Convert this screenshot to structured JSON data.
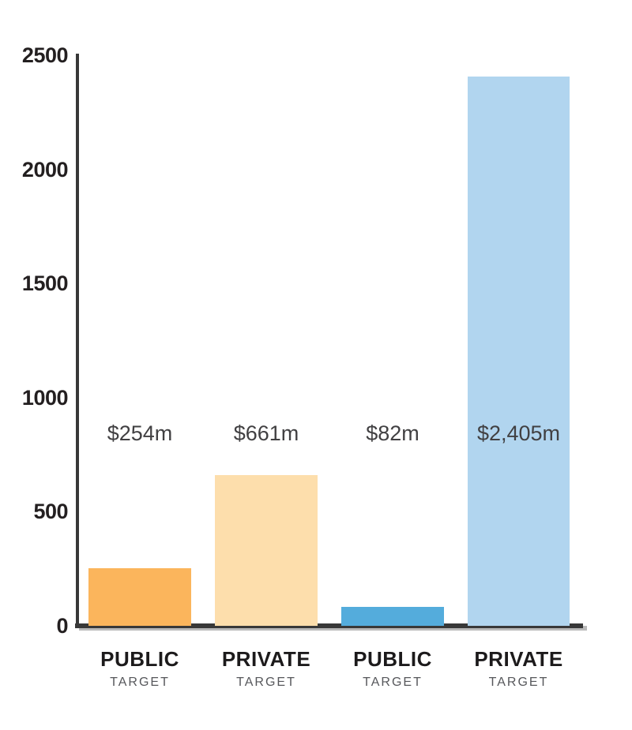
{
  "chart_data": {
    "type": "bar",
    "title": "",
    "xlabel": "",
    "ylabel": "",
    "ylim": [
      0,
      2500
    ],
    "y_ticks": [
      "0",
      "500",
      "1000",
      "1500",
      "2000",
      "2500"
    ],
    "y_tick_values": [
      0,
      500,
      1000,
      1500,
      2000,
      2500
    ],
    "grid": false,
    "legend_position": "none",
    "categories": [
      "PUBLIC",
      "PRIVATE",
      "PUBLIC",
      "PRIVATE"
    ],
    "subcategories": [
      "TARGET",
      "TARGET",
      "TARGET",
      "TARGET"
    ],
    "values": [
      254,
      661,
      82,
      2405
    ],
    "value_labels": [
      "$254m",
      "$661m",
      "$82m",
      "$2,405m"
    ],
    "bar_colors": [
      "#FBB55C",
      "#FDDEAC",
      "#54ACDC",
      "#B1D5EF"
    ]
  },
  "colors": {
    "background": "#FFFFFF",
    "axis": "#383838",
    "axis_shadow": "#828282",
    "tick_label": "#231F20",
    "value_label": "#414042",
    "category_label": "#1C1A1B",
    "subcategory_label": "#56575B",
    "bar_orange": "#FBB55C",
    "bar_peach": "#FDDEAC",
    "bar_blue": "#54ACDC",
    "bar_light_blue": "#B1D5EF"
  }
}
